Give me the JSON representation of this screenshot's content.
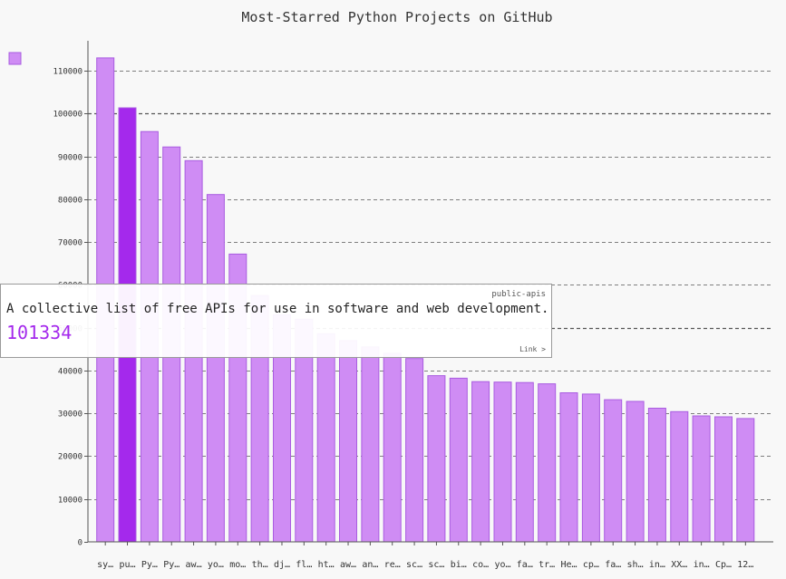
{
  "colors": {
    "background": "#f8f8f8",
    "bar_fill": "#cf8cf4",
    "bar_stroke": "#a95ce0",
    "bar_highlight": "#a429ec",
    "text": "#333333",
    "grid": "#555555"
  },
  "tooltip": {
    "label": "public-apis",
    "description": "A collective list of free APIs for use in software and web development.",
    "value": "101334",
    "link": "Link >"
  },
  "chart_data": {
    "type": "bar",
    "title": "Most-Starred Python Projects on GitHub",
    "xlabel": "",
    "ylabel": "",
    "ylim": [
      0,
      117000
    ],
    "yticks": [
      0,
      10000,
      20000,
      30000,
      40000,
      50000,
      60000,
      70000,
      80000,
      90000,
      100000,
      110000
    ],
    "ytick_labels": [
      "0",
      "10000",
      "20000",
      "30000",
      "40000",
      "50000",
      "60000",
      "70000",
      "80000",
      "90000",
      "100000",
      "110000"
    ],
    "grid": true,
    "legend": "top-left",
    "highlighted_index": 1,
    "categories": [
      "sy…",
      "pu…",
      "Py…",
      "Py…",
      "aw…",
      "yo…",
      "mo…",
      "th…",
      "dj…",
      "fl…",
      "ht…",
      "aw…",
      "an…",
      "re…",
      "sc…",
      "sc…",
      "bi…",
      "co…",
      "yo…",
      "fa…",
      "tr…",
      "He…",
      "cp…",
      "fa…",
      "sh…",
      "in…",
      "XX…",
      "in…",
      "Cp…",
      "12…"
    ],
    "values": [
      113000,
      101334,
      95800,
      92200,
      89000,
      81100,
      67200,
      57500,
      53000,
      52000,
      48600,
      47000,
      45500,
      44000,
      42800,
      38800,
      38200,
      37400,
      37300,
      37200,
      36900,
      34800,
      34500,
      33200,
      32800,
      31200,
      30400,
      29400,
      29200,
      28800
    ]
  }
}
